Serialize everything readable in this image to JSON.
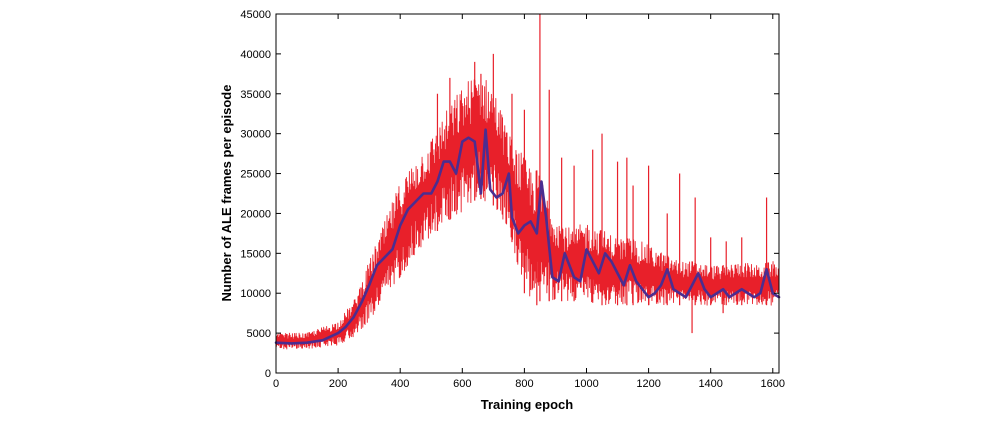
{
  "chart_data": {
    "type": "line",
    "title": "",
    "xlabel": "Training epoch",
    "ylabel": "Number of ALE frames per episode",
    "xlim": [
      0,
      1620
    ],
    "ylim": [
      0,
      45000
    ],
    "x_ticks": [
      0,
      200,
      400,
      600,
      800,
      1000,
      1200,
      1400,
      1600
    ],
    "y_ticks": [
      0,
      5000,
      10000,
      15000,
      20000,
      25000,
      30000,
      35000,
      40000,
      45000
    ],
    "x_tick_labels": [
      "0",
      "200",
      "400",
      "600",
      "800",
      "1000",
      "1200",
      "1400",
      "1600"
    ],
    "y_tick_labels": [
      "0",
      "5000",
      "10000",
      "15000",
      "20000",
      "25000",
      "30000",
      "35000",
      "40000",
      "45000"
    ],
    "grid": false,
    "legend": "none",
    "series": [
      {
        "role": "raw",
        "color": "#e8202a",
        "upper_envelope": {
          "x": [
            0,
            100,
            200,
            250,
            300,
            350,
            400,
            450,
            500,
            550,
            600,
            650,
            700,
            750,
            800,
            850,
            900,
            950,
            1000,
            1050,
            1100,
            1150,
            1200,
            1250,
            1300,
            1350,
            1400,
            1450,
            1500,
            1550,
            1600,
            1620
          ],
          "y": [
            5000,
            5000,
            6500,
            9000,
            14000,
            19000,
            24000,
            27000,
            29500,
            33000,
            36000,
            38000,
            36000,
            30000,
            27000,
            25000,
            20000,
            18000,
            19000,
            18000,
            17000,
            17000,
            16000,
            15000,
            14000,
            14000,
            13500,
            13500,
            14000,
            13500,
            14000,
            13500
          ]
        },
        "lower_envelope": {
          "x": [
            0,
            100,
            200,
            250,
            300,
            350,
            400,
            450,
            500,
            550,
            600,
            650,
            700,
            750,
            800,
            850,
            900,
            950,
            1000,
            1050,
            1100,
            1150,
            1200,
            1250,
            1300,
            1350,
            1400,
            1450,
            1500,
            1550,
            1600,
            1620
          ],
          "y": [
            3000,
            3000,
            3500,
            4500,
            6500,
            9000,
            12000,
            15000,
            17000,
            19000,
            20000,
            22000,
            21000,
            18000,
            10000,
            9000,
            9000,
            9000,
            9000,
            8500,
            8500,
            8500,
            8500,
            8500,
            8500,
            8500,
            8500,
            8500,
            8500,
            8500,
            8500,
            8500
          ]
        },
        "spikes": [
          {
            "x": 520,
            "y": 35000
          },
          {
            "x": 560,
            "y": 37000
          },
          {
            "x": 640,
            "y": 39000
          },
          {
            "x": 660,
            "y": 37500
          },
          {
            "x": 700,
            "y": 40000
          },
          {
            "x": 760,
            "y": 35000
          },
          {
            "x": 800,
            "y": 33000
          },
          {
            "x": 850,
            "y": 45000
          },
          {
            "x": 880,
            "y": 35500
          },
          {
            "x": 920,
            "y": 27000
          },
          {
            "x": 960,
            "y": 26000
          },
          {
            "x": 1020,
            "y": 28000
          },
          {
            "x": 1050,
            "y": 30000
          },
          {
            "x": 1100,
            "y": 26500
          },
          {
            "x": 1130,
            "y": 27000
          },
          {
            "x": 1150,
            "y": 23500
          },
          {
            "x": 1200,
            "y": 26000
          },
          {
            "x": 1260,
            "y": 20000
          },
          {
            "x": 1300,
            "y": 25000
          },
          {
            "x": 1350,
            "y": 22000
          },
          {
            "x": 1400,
            "y": 17000
          },
          {
            "x": 1450,
            "y": 16500
          },
          {
            "x": 1500,
            "y": 17000
          },
          {
            "x": 1580,
            "y": 22000
          }
        ],
        "dips": [
          {
            "x": 840,
            "y": 8500
          },
          {
            "x": 1340,
            "y": 5000
          },
          {
            "x": 1440,
            "y": 7500
          }
        ]
      },
      {
        "role": "smoothed",
        "color": "#4b2d90",
        "x": [
          0,
          50,
          100,
          150,
          200,
          225,
          250,
          275,
          300,
          325,
          350,
          375,
          400,
          425,
          450,
          475,
          500,
          520,
          540,
          560,
          580,
          600,
          620,
          640,
          660,
          675,
          690,
          710,
          730,
          750,
          760,
          780,
          800,
          820,
          840,
          855,
          870,
          890,
          910,
          930,
          960,
          980,
          1000,
          1020,
          1040,
          1060,
          1080,
          1100,
          1120,
          1140,
          1160,
          1180,
          1200,
          1220,
          1240,
          1260,
          1280,
          1300,
          1320,
          1340,
          1360,
          1380,
          1400,
          1420,
          1440,
          1460,
          1480,
          1500,
          1520,
          1540,
          1560,
          1580,
          1600,
          1620
        ],
        "y": [
          3800,
          3700,
          3800,
          4100,
          5000,
          5800,
          7000,
          8800,
          11000,
          13500,
          14500,
          15500,
          18500,
          20500,
          21500,
          22500,
          22500,
          24000,
          26500,
          26500,
          25000,
          29000,
          29500,
          29000,
          22500,
          30500,
          23000,
          22000,
          22500,
          25000,
          19500,
          17500,
          18500,
          19000,
          17500,
          24000,
          19500,
          12000,
          11500,
          15000,
          12000,
          11500,
          15500,
          14000,
          12500,
          15000,
          14000,
          12500,
          11000,
          13500,
          11500,
          10500,
          9500,
          10000,
          11000,
          13000,
          10500,
          10000,
          9500,
          11000,
          12500,
          10500,
          9500,
          10000,
          10500,
          9500,
          10000,
          10500,
          10000,
          9500,
          10000,
          13000,
          10000,
          9500
        ]
      }
    ]
  }
}
